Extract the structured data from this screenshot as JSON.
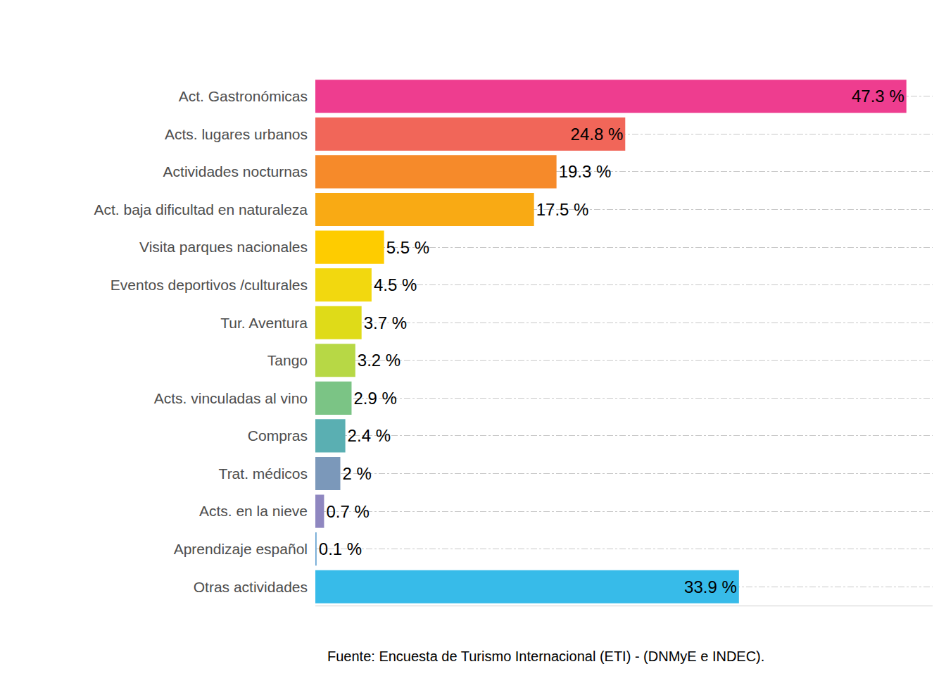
{
  "chart_data": {
    "type": "bar",
    "orientation": "horizontal",
    "categories": [
      "Act. Gastronómicas",
      "Acts. lugares urbanos",
      "Actividades nocturnas",
      "Act. baja dificultad en naturaleza",
      "Visita parques nacionales",
      "Eventos deportivos /culturales",
      "Tur. Aventura",
      "Tango",
      "Acts. vinculadas al vino",
      "Compras",
      "Trat. médicos",
      "Acts. en la nieve",
      "Aprendizaje español",
      "Otras actividades"
    ],
    "values": [
      47.3,
      24.8,
      19.3,
      17.5,
      5.5,
      4.5,
      3.7,
      3.2,
      2.9,
      2.4,
      2,
      0.7,
      0.1,
      33.9
    ],
    "value_labels": [
      "47.3 %",
      "24.8 %",
      "19.3 %",
      "17.5 %",
      "5.5 %",
      "4.5 %",
      "3.7 %",
      "3.2 %",
      "2.9 %",
      "2.4 %",
      "2 %",
      "0.7 %",
      "0.1 %",
      "33.9 %"
    ],
    "colors": [
      "#EE3D8F",
      "#F16659",
      "#F68A2A",
      "#F9AA14",
      "#FECC00",
      "#F2D80F",
      "#DFDB18",
      "#B7D845",
      "#7BC485",
      "#5AAFB2",
      "#7B98BA",
      "#8F87C0",
      "#6BA6D3",
      "#37BBE9"
    ],
    "data_labels": true,
    "xlim": [
      0,
      49.4
    ],
    "xticks": [],
    "tick_labels": "y",
    "grid": true,
    "annotations": [
      "Fuente: Encuesta de Turismo Internacional (ETI) - (DNMyE e INDEC)."
    ]
  }
}
